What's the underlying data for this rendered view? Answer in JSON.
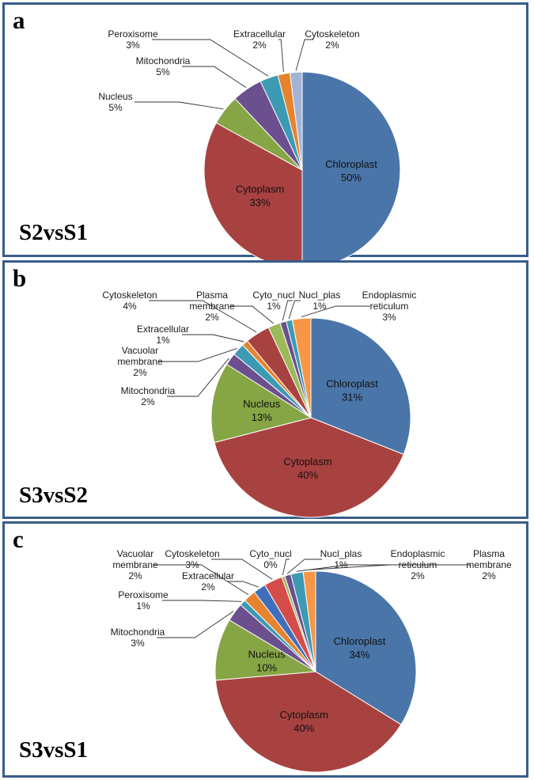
{
  "colors": {
    "border": "#385d8a",
    "chloroplast": "#4a75a8",
    "cytoplasm": "#a84240",
    "nucleus": "#86a545",
    "purple": "#6c4f8f",
    "teal": "#3d9ab3",
    "orange": "#e7832f",
    "lavender": "#a3b4d6",
    "blue2": "#3f6fba",
    "red2": "#d54d4a",
    "green2": "#9bbb59"
  },
  "chart_data": [
    {
      "type": "pie",
      "panel_letter": "a",
      "title": "S2vsS1",
      "slices": [
        {
          "label": "Chloroplast",
          "pct": "50%",
          "value": 50,
          "color": "#4a75a8",
          "inside": true
        },
        {
          "label": "Cytoplasm",
          "pct": "33%",
          "value": 33,
          "color": "#a84240",
          "inside": true
        },
        {
          "label": "Nucleus",
          "pct": "5%",
          "value": 5,
          "color": "#86a545",
          "inside": false
        },
        {
          "label": "Mitochondria",
          "pct": "5%",
          "value": 5,
          "color": "#6c4f8f",
          "inside": false
        },
        {
          "label": "Peroxisome",
          "pct": "3%",
          "value": 3,
          "color": "#3d9ab3",
          "inside": false
        },
        {
          "label": "Extracellular",
          "pct": "2%",
          "value": 2,
          "color": "#e7832f",
          "inside": false
        },
        {
          "label": "Cytoskeleton",
          "pct": "2%",
          "value": 2,
          "color": "#a3b4d6",
          "inside": false
        }
      ]
    },
    {
      "type": "pie",
      "panel_letter": "b",
      "title": "S3vsS2",
      "slices": [
        {
          "label": "Chloroplast",
          "pct": "31%",
          "value": 31,
          "color": "#4a75a8",
          "inside": true
        },
        {
          "label": "Cytoplasm",
          "pct": "40%",
          "value": 40,
          "color": "#a84240",
          "inside": true
        },
        {
          "label": "Nucleus",
          "pct": "13%",
          "value": 13,
          "color": "#86a545",
          "inside": true
        },
        {
          "label": "Mitochondria",
          "pct": "2%",
          "value": 2,
          "color": "#6c4f8f",
          "inside": false
        },
        {
          "label": "Vacuolar membrane",
          "pct": "2%",
          "value": 2,
          "color": "#3d9ab3",
          "inside": false
        },
        {
          "label": "Extracellular",
          "pct": "1%",
          "value": 1,
          "color": "#e7832f",
          "inside": false
        },
        {
          "label": "Cytoskeleton",
          "pct": "4%",
          "value": 4,
          "color": "#a84240",
          "inside": false
        },
        {
          "label": "Plasma membrane",
          "pct": "2%",
          "value": 2,
          "color": "#9bbb59",
          "inside": false
        },
        {
          "label": "Cyto_nucl",
          "pct": "1%",
          "value": 1,
          "color": "#6c4f8f",
          "inside": false
        },
        {
          "label": "Nucl_plas",
          "pct": "1%",
          "value": 1,
          "color": "#3d9ab3",
          "inside": false
        },
        {
          "label": "Endoplasmic reticulum",
          "pct": "3%",
          "value": 3,
          "color": "#f79646",
          "inside": false
        }
      ]
    },
    {
      "type": "pie",
      "panel_letter": "c",
      "title": "S3vsS1",
      "slices": [
        {
          "label": "Chloroplast",
          "pct": "34%",
          "value": 34,
          "color": "#4a75a8",
          "inside": true
        },
        {
          "label": "Cytoplasm",
          "pct": "40%",
          "value": 40,
          "color": "#a84240",
          "inside": true
        },
        {
          "label": "Nucleus",
          "pct": "10%",
          "value": 10,
          "color": "#86a545",
          "inside": true
        },
        {
          "label": "Mitochondria",
          "pct": "3%",
          "value": 3,
          "color": "#6c4f8f",
          "inside": false
        },
        {
          "label": "Peroxisome",
          "pct": "1%",
          "value": 1,
          "color": "#3d9ab3",
          "inside": false
        },
        {
          "label": "Vacuolar membrane",
          "pct": "2%",
          "value": 2,
          "color": "#e7832f",
          "inside": false
        },
        {
          "label": "Extracellular",
          "pct": "2%",
          "value": 2,
          "color": "#3f6fba",
          "inside": false
        },
        {
          "label": "Cytoskeleton",
          "pct": "3%",
          "value": 3,
          "color": "#d54d4a",
          "inside": false
        },
        {
          "label": "Cyto_nucl",
          "pct": "0%",
          "value": 0.5,
          "color": "#9bbb59",
          "inside": false
        },
        {
          "label": "Nucl_plas",
          "pct": "1%",
          "value": 1,
          "color": "#6c4f8f",
          "inside": false
        },
        {
          "label": "Endoplasmic reticulum",
          "pct": "2%",
          "value": 2,
          "color": "#3d9ab3",
          "inside": false
        },
        {
          "label": "Plasma membrane",
          "pct": "2%",
          "value": 2,
          "color": "#f79646",
          "inside": false
        }
      ]
    }
  ]
}
